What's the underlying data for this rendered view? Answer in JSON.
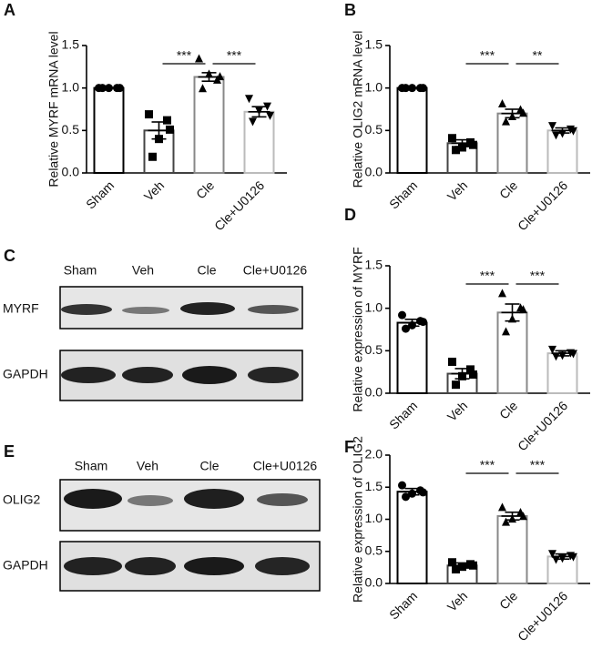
{
  "chart_data": [
    {
      "type": "bar",
      "panel": "A",
      "ylabel": "Relative MYRF mRNA level",
      "categories": [
        "Sham",
        "Veh",
        "Cle",
        "Cle+U0126"
      ],
      "values": [
        1.0,
        0.5,
        1.13,
        0.72
      ],
      "errors": [
        0,
        0.1,
        0.05,
        0.06
      ],
      "points": [
        [
          1,
          1,
          1,
          1,
          1
        ],
        [
          0.69,
          0.62,
          0.4,
          0.19,
          0.51
        ],
        [
          1.34,
          1.09,
          1.16,
          0.99,
          1.13
        ],
        [
          0.88,
          0.79,
          0.74,
          0.61,
          0.68
        ]
      ],
      "colors": [
        "#000000",
        "#444444",
        "#888888",
        "#bbbbbb"
      ],
      "markers": [
        "circle",
        "square",
        "triangle",
        "triangle-down"
      ],
      "significance": [
        {
          "label": "***",
          "between": [
            "Veh",
            "Cle"
          ]
        },
        {
          "label": "***",
          "between": [
            "Cle",
            "Cle+U0126"
          ]
        }
      ],
      "ylim": [
        0,
        1.5
      ],
      "yticks": [
        {
          "value": 0,
          "label": "0.0"
        },
        {
          "value": 0.5,
          "label": "0.5"
        },
        {
          "value": 1,
          "label": "1.0"
        },
        {
          "value": 1.5,
          "label": "1.5"
        }
      ]
    },
    {
      "type": "bar",
      "panel": "B",
      "ylabel": "Relative OLIG2 mRNA level",
      "categories": [
        "Sham",
        "Veh",
        "Cle",
        "Cle+U0126"
      ],
      "values": [
        1.0,
        0.35,
        0.7,
        0.5
      ],
      "errors": [
        0,
        0.04,
        0.05,
        0.03
      ],
      "points": [
        [
          1,
          1,
          1,
          1,
          1
        ],
        [
          0.41,
          0.36,
          0.3,
          0.27,
          0.33
        ],
        [
          0.81,
          0.74,
          0.66,
          0.6,
          0.7
        ],
        [
          0.56,
          0.52,
          0.47,
          0.45,
          0.5
        ]
      ],
      "colors": [
        "#000000",
        "#444444",
        "#888888",
        "#bbbbbb"
      ],
      "markers": [
        "circle",
        "square",
        "triangle",
        "triangle-down"
      ],
      "significance": [
        {
          "label": "***",
          "between": [
            "Veh",
            "Cle"
          ]
        },
        {
          "label": "**",
          "between": [
            "Cle",
            "Cle+U0126"
          ]
        }
      ],
      "ylim": [
        0,
        1.5
      ],
      "yticks": [
        {
          "value": 0,
          "label": "0.0"
        },
        {
          "value": 0.5,
          "label": "0.5"
        },
        {
          "value": 1,
          "label": "1.0"
        },
        {
          "value": 1.5,
          "label": "1.5"
        }
      ]
    },
    {
      "type": "bar",
      "panel": "D",
      "ylabel": "Relative expression of MYRF",
      "categories": [
        "Sham",
        "Veh",
        "Cle",
        "Cle+U0126"
      ],
      "values": [
        0.83,
        0.23,
        0.95,
        0.47
      ],
      "errors": [
        0.04,
        0.06,
        0.1,
        0.03
      ],
      "points": [
        [
          0.92,
          0.85,
          0.8,
          0.76,
          0.84
        ],
        [
          0.37,
          0.28,
          0.2,
          0.1,
          0.22
        ],
        [
          1.17,
          1.0,
          0.87,
          0.72,
          0.98
        ],
        [
          0.52,
          0.48,
          0.45,
          0.44,
          0.47
        ]
      ],
      "colors": [
        "#000000",
        "#444444",
        "#888888",
        "#bbbbbb"
      ],
      "markers": [
        "circle",
        "square",
        "triangle",
        "triangle-down"
      ],
      "significance": [
        {
          "label": "***",
          "between": [
            "Veh",
            "Cle"
          ]
        },
        {
          "label": "***",
          "between": [
            "Cle",
            "Cle+U0126"
          ]
        }
      ],
      "ylim": [
        0,
        1.5
      ],
      "yticks": [
        {
          "value": 0,
          "label": "0.0"
        },
        {
          "value": 0.5,
          "label": "0.5"
        },
        {
          "value": 1,
          "label": "1.0"
        },
        {
          "value": 1.5,
          "label": "1.5"
        }
      ]
    },
    {
      "type": "bar",
      "panel": "F",
      "ylabel": "Relative expression of OLIG2",
      "categories": [
        "Sham",
        "Veh",
        "Cle",
        "Cle+U0126"
      ],
      "values": [
        1.43,
        0.28,
        1.05,
        0.42
      ],
      "errors": [
        0.05,
        0.04,
        0.06,
        0.04
      ],
      "points": [
        [
          1.53,
          1.45,
          1.4,
          1.35,
          1.42
        ],
        [
          0.33,
          0.3,
          0.26,
          0.22,
          0.28
        ],
        [
          1.18,
          1.1,
          1.0,
          0.95,
          1.04
        ],
        [
          0.47,
          0.44,
          0.4,
          0.38,
          0.42
        ]
      ],
      "colors": [
        "#000000",
        "#444444",
        "#888888",
        "#bbbbbb"
      ],
      "markers": [
        "circle",
        "square",
        "triangle",
        "triangle-down"
      ],
      "significance": [
        {
          "label": "***",
          "between": [
            "Veh",
            "Cle"
          ]
        },
        {
          "label": "***",
          "between": [
            "Cle",
            "Cle+U0126"
          ]
        }
      ],
      "ylim": [
        0,
        2.0
      ],
      "yticks": [
        {
          "value": 0,
          "label": "0.0"
        },
        {
          "value": 0.5,
          "label": "0.5"
        },
        {
          "value": 1,
          "label": "1.0"
        },
        {
          "value": 1.5,
          "label": "1.5"
        },
        {
          "value": 2,
          "label": "2.0"
        }
      ]
    }
  ],
  "blots": [
    {
      "panel": "C",
      "lanes": [
        "Sham",
        "Veh",
        "Cle",
        "Cle+U0126"
      ],
      "rows": [
        "MYRF",
        "GAPDH"
      ]
    },
    {
      "panel": "E",
      "lanes": [
        "Sham",
        "Veh",
        "Cle",
        "Cle+U0126"
      ],
      "rows": [
        "OLIG2",
        "GAPDH"
      ]
    }
  ]
}
